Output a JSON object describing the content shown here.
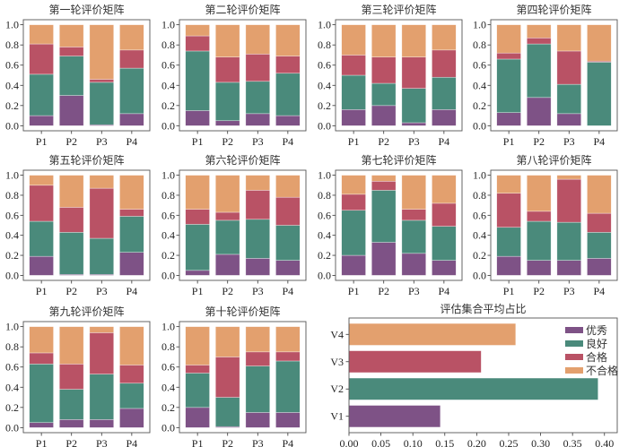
{
  "figure": {
    "category_labels": [
      "优秀",
      "良好",
      "合格",
      "不合格"
    ],
    "colors": {
      "优秀": "#7e5286",
      "良好": "#4a8a7b",
      "合格": "#b95265",
      "不合格": "#e3a06e"
    }
  },
  "chart_data": [
    {
      "type": "bar",
      "stacked": true,
      "title": "第一轮评价矩阵",
      "categories": [
        "P1",
        "P2",
        "P3",
        "P4"
      ],
      "ylim": [
        0,
        1.0
      ],
      "yticks": [
        "0.0",
        "0.2",
        "0.4",
        "0.6",
        "0.8",
        "1.0"
      ],
      "series": [
        {
          "name": "优秀",
          "values": [
            0.1,
            0.3,
            0.01,
            0.12
          ]
        },
        {
          "name": "良好",
          "values": [
            0.41,
            0.39,
            0.42,
            0.45
          ]
        },
        {
          "name": "合格",
          "values": [
            0.3,
            0.09,
            0.03,
            0.18
          ]
        },
        {
          "name": "不合格",
          "values": [
            0.19,
            0.22,
            0.54,
            0.25
          ]
        }
      ]
    },
    {
      "type": "bar",
      "stacked": true,
      "title": "第二轮评价矩阵",
      "categories": [
        "P1",
        "P2",
        "P3",
        "P4"
      ],
      "ylim": [
        0,
        1.0
      ],
      "yticks": [
        "0.0",
        "0.2",
        "0.4",
        "0.6",
        "0.8",
        "1.0"
      ],
      "series": [
        {
          "name": "优秀",
          "values": [
            0.15,
            0.05,
            0.12,
            0.1
          ]
        },
        {
          "name": "良好",
          "values": [
            0.59,
            0.38,
            0.32,
            0.42
          ]
        },
        {
          "name": "合格",
          "values": [
            0.15,
            0.25,
            0.27,
            0.17
          ]
        },
        {
          "name": "不合格",
          "values": [
            0.11,
            0.32,
            0.29,
            0.31
          ]
        }
      ]
    },
    {
      "type": "bar",
      "stacked": true,
      "title": "第三轮评价矩阵",
      "categories": [
        "P1",
        "P2",
        "P3",
        "P4"
      ],
      "ylim": [
        0,
        1.0
      ],
      "yticks": [
        "0.0",
        "0.2",
        "0.4",
        "0.6",
        "0.8",
        "1.0"
      ],
      "series": [
        {
          "name": "优秀",
          "values": [
            0.16,
            0.2,
            0.03,
            0.16
          ]
        },
        {
          "name": "良好",
          "values": [
            0.34,
            0.22,
            0.34,
            0.32
          ]
        },
        {
          "name": "合格",
          "values": [
            0.2,
            0.26,
            0.31,
            0.27
          ]
        },
        {
          "name": "不合格",
          "values": [
            0.3,
            0.32,
            0.32,
            0.25
          ]
        }
      ]
    },
    {
      "type": "bar",
      "stacked": true,
      "title": "第四轮评价矩阵",
      "categories": [
        "P1",
        "P2",
        "P3",
        "P4"
      ],
      "ylim": [
        0,
        1.0
      ],
      "yticks": [
        "0.0",
        "0.2",
        "0.4",
        "0.6",
        "0.8",
        "1.0"
      ],
      "series": [
        {
          "name": "优秀",
          "values": [
            0.13,
            0.28,
            0.12,
            0.0
          ]
        },
        {
          "name": "良好",
          "values": [
            0.53,
            0.53,
            0.29,
            0.63
          ]
        },
        {
          "name": "合格",
          "values": [
            0.06,
            0.06,
            0.33,
            0.01
          ]
        },
        {
          "name": "不合格",
          "values": [
            0.28,
            0.13,
            0.26,
            0.36
          ]
        }
      ]
    },
    {
      "type": "bar",
      "stacked": true,
      "title": "第五轮评价矩阵",
      "categories": [
        "P1",
        "P2",
        "P3",
        "P4"
      ],
      "ylim": [
        0,
        1.0
      ],
      "yticks": [
        "0.0",
        "0.2",
        "0.4",
        "0.6",
        "0.8",
        "1.0"
      ],
      "series": [
        {
          "name": "优秀",
          "values": [
            0.19,
            0.01,
            0.01,
            0.23
          ]
        },
        {
          "name": "良好",
          "values": [
            0.35,
            0.42,
            0.36,
            0.36
          ]
        },
        {
          "name": "合格",
          "values": [
            0.36,
            0.25,
            0.5,
            0.07
          ]
        },
        {
          "name": "不合格",
          "values": [
            0.1,
            0.32,
            0.13,
            0.34
          ]
        }
      ]
    },
    {
      "type": "bar",
      "stacked": true,
      "title": "第六轮评价矩阵",
      "categories": [
        "P1",
        "P2",
        "P3",
        "P4"
      ],
      "ylim": [
        0,
        1.0
      ],
      "yticks": [
        "0.0",
        "0.2",
        "0.4",
        "0.6",
        "0.8",
        "1.0"
      ],
      "series": [
        {
          "name": "优秀",
          "values": [
            0.05,
            0.21,
            0.17,
            0.15
          ]
        },
        {
          "name": "良好",
          "values": [
            0.46,
            0.34,
            0.39,
            0.35
          ]
        },
        {
          "name": "合格",
          "values": [
            0.15,
            0.08,
            0.29,
            0.28
          ]
        },
        {
          "name": "不合格",
          "values": [
            0.34,
            0.37,
            0.15,
            0.22
          ]
        }
      ]
    },
    {
      "type": "bar",
      "stacked": true,
      "title": "第七轮评价矩阵",
      "categories": [
        "P1",
        "P2",
        "P3",
        "P4"
      ],
      "ylim": [
        0,
        1.0
      ],
      "yticks": [
        "0.0",
        "0.2",
        "0.4",
        "0.6",
        "0.8",
        "1.0"
      ],
      "series": [
        {
          "name": "优秀",
          "values": [
            0.2,
            0.33,
            0.22,
            0.15
          ]
        },
        {
          "name": "良好",
          "values": [
            0.45,
            0.52,
            0.33,
            0.34
          ]
        },
        {
          "name": "合格",
          "values": [
            0.16,
            0.09,
            0.11,
            0.23
          ]
        },
        {
          "name": "不合格",
          "values": [
            0.19,
            0.06,
            0.34,
            0.28
          ]
        }
      ]
    },
    {
      "type": "bar",
      "stacked": true,
      "title": "第八轮评价矩阵",
      "categories": [
        "P1",
        "P2",
        "P3",
        "P4"
      ],
      "ylim": [
        0,
        1.0
      ],
      "yticks": [
        "0.0",
        "0.2",
        "0.4",
        "0.6",
        "0.8",
        "1.0"
      ],
      "series": [
        {
          "name": "优秀",
          "values": [
            0.19,
            0.15,
            0.15,
            0.17
          ]
        },
        {
          "name": "良好",
          "values": [
            0.29,
            0.39,
            0.38,
            0.26
          ]
        },
        {
          "name": "合格",
          "values": [
            0.34,
            0.1,
            0.43,
            0.19
          ]
        },
        {
          "name": "不合格",
          "values": [
            0.18,
            0.36,
            0.04,
            0.38
          ]
        }
      ]
    },
    {
      "type": "bar",
      "stacked": true,
      "title": "第九轮评价矩阵",
      "categories": [
        "P1",
        "P2",
        "P3",
        "P4"
      ],
      "ylim": [
        0,
        1.0
      ],
      "yticks": [
        "0.0",
        "0.2",
        "0.4",
        "0.6",
        "0.8",
        "1.0"
      ],
      "series": [
        {
          "name": "优秀",
          "values": [
            0.05,
            0.08,
            0.08,
            0.19
          ]
        },
        {
          "name": "良好",
          "values": [
            0.58,
            0.3,
            0.45,
            0.25
          ]
        },
        {
          "name": "合格",
          "values": [
            0.11,
            0.25,
            0.41,
            0.18
          ]
        },
        {
          "name": "不合格",
          "values": [
            0.26,
            0.37,
            0.06,
            0.38
          ]
        }
      ]
    },
    {
      "type": "bar",
      "stacked": true,
      "title": "第十轮评价矩阵",
      "categories": [
        "P1",
        "P2",
        "P3",
        "P4"
      ],
      "ylim": [
        0,
        1.0
      ],
      "yticks": [
        "0.0",
        "0.2",
        "0.4",
        "0.6",
        "0.8",
        "1.0"
      ],
      "series": [
        {
          "name": "优秀",
          "values": [
            0.2,
            0.01,
            0.15,
            0.15
          ]
        },
        {
          "name": "良好",
          "values": [
            0.34,
            0.29,
            0.46,
            0.51
          ]
        },
        {
          "name": "合格",
          "values": [
            0.08,
            0.4,
            0.14,
            0.09
          ]
        },
        {
          "name": "不合格",
          "values": [
            0.38,
            0.3,
            0.25,
            0.25
          ]
        }
      ]
    },
    {
      "type": "bar",
      "orientation": "horizontal",
      "title": "评估集合平均占比",
      "categories": [
        "V1",
        "V2",
        "V3",
        "V4"
      ],
      "values": [
        0.143,
        0.39,
        0.207,
        0.261
      ],
      "colors_by_category": [
        "优秀",
        "良好",
        "合格",
        "不合格"
      ],
      "xlim": [
        0,
        0.4
      ],
      "xticks": [
        "0.00",
        "0.05",
        "0.10",
        "0.15",
        "0.20",
        "0.25",
        "0.30",
        "0.35",
        "0.40"
      ],
      "legend": {
        "position": "top-right",
        "entries": [
          "优秀",
          "良好",
          "合格",
          "不合格"
        ]
      }
    }
  ]
}
